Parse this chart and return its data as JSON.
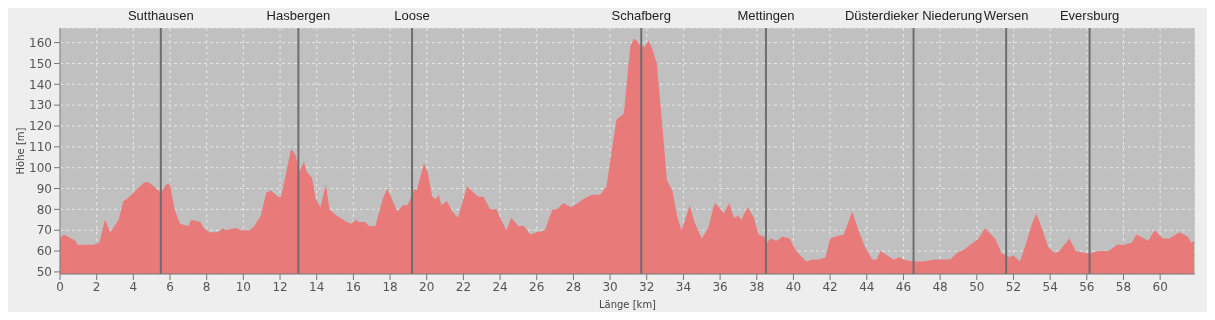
{
  "chart_data": {
    "type": "area",
    "xlabel": "Länge [km]",
    "ylabel": "Höhe [m]",
    "x": [
      0,
      0.2,
      0.85,
      0.95,
      1.8,
      2.15,
      2.45,
      2.75,
      3.2,
      3.45,
      3.65,
      4.6,
      4.85,
      5.25,
      5.5,
      5.8,
      6.0,
      6.25,
      6.55,
      7.0,
      7.15,
      7.65,
      7.85,
      8.15,
      8.6,
      8.9,
      9.05,
      9.45,
      9.65,
      9.85,
      10.35,
      10.6,
      10.95,
      11.25,
      11.5,
      11.9,
      12.05,
      12.25,
      12.6,
      12.7,
      12.85,
      13.05,
      13.3,
      13.45,
      13.75,
      13.95,
      14.2,
      14.5,
      14.7,
      15.1,
      15.65,
      15.9,
      16.1,
      16.3,
      16.65,
      16.85,
      17.2,
      17.6,
      17.85,
      18.1,
      18.4,
      18.7,
      18.95,
      19.15,
      19.35,
      19.45,
      19.85,
      20.05,
      20.3,
      20.5,
      20.65,
      20.8,
      21.1,
      21.4,
      21.7,
      22.2,
      22.8,
      23.1,
      23.45,
      23.8,
      24.0,
      24.35,
      24.6,
      25.0,
      25.3,
      25.65,
      26.0,
      26.45,
      26.85,
      27.1,
      27.45,
      27.9,
      28.55,
      29.0,
      29.45,
      29.8,
      30.1,
      30.35,
      30.75,
      31.1,
      31.3,
      31.45,
      31.6,
      31.9,
      32.1,
      32.3,
      32.55,
      32.85,
      33.1,
      33.4,
      33.65,
      33.9,
      34.35,
      34.6,
      35.0,
      35.35,
      35.7,
      35.95,
      36.2,
      36.5,
      36.75,
      37.0,
      37.15,
      37.5,
      37.85,
      38.1,
      38.4,
      38.55,
      38.75,
      39.1,
      39.4,
      39.8,
      40.15,
      40.7,
      41.05,
      41.4,
      41.75,
      42.0,
      42.3,
      42.75,
      43.2,
      43.55,
      43.9,
      44.3,
      44.55,
      44.75,
      45.1,
      45.45,
      45.8,
      46.0,
      46.55,
      47.1,
      47.65,
      48.55,
      48.9,
      49.35,
      49.65,
      50.1,
      50.45,
      51.0,
      51.35,
      51.8,
      52.0,
      52.35,
      52.7,
      53.0,
      53.25,
      53.5,
      53.9,
      54.25,
      54.5,
      55.05,
      55.4,
      55.95,
      56.2,
      56.65,
      57.2,
      57.65,
      58.0,
      58.45,
      58.7,
      59.35,
      59.7,
      60.15,
      60.5,
      61.05,
      61.5,
      61.7,
      61.85
    ],
    "values": [
      66,
      68,
      65,
      63,
      63,
      64,
      75,
      69,
      75,
      84,
      85,
      93,
      93,
      90,
      88,
      92,
      92,
      80,
      73,
      72,
      75,
      74,
      71,
      69,
      69,
      71,
      70,
      71,
      71,
      70,
      70,
      72,
      77,
      88,
      89,
      86,
      86,
      94,
      109,
      108,
      106,
      98,
      103,
      98,
      95,
      85,
      81,
      92,
      80,
      77,
      74,
      73,
      75,
      74,
      74,
      72,
      72,
      85,
      90,
      85,
      79,
      82,
      82,
      86,
      90,
      89,
      102,
      98,
      86,
      85,
      87,
      82,
      84,
      79,
      76,
      91,
      86,
      86,
      80,
      80,
      76,
      70,
      76,
      72,
      72,
      68,
      69,
      70,
      80,
      80,
      83,
      81,
      85,
      87,
      87,
      91,
      109,
      123,
      126,
      158,
      162,
      161,
      159,
      158,
      161,
      157,
      150,
      120,
      94,
      89,
      77,
      70,
      82,
      74,
      66,
      71,
      83,
      81,
      78,
      83,
      76,
      77,
      75,
      81,
      76,
      68,
      67,
      64,
      66,
      65,
      67,
      66,
      60,
      55,
      56,
      56,
      57,
      66,
      67,
      68,
      79,
      70,
      62,
      56,
      56,
      60,
      58,
      56,
      57,
      56,
      55,
      55,
      56,
      56,
      59,
      61,
      63,
      66,
      71,
      66,
      59,
      57,
      58,
      55,
      64,
      73,
      78,
      72,
      62,
      59,
      60,
      66,
      60,
      59,
      59,
      60,
      60,
      63,
      63,
      64,
      68,
      65,
      70,
      66,
      66,
      69,
      67,
      64,
      65
    ],
    "color": "#e97a7a",
    "xlim": [
      0,
      61.9
    ],
    "ylim": [
      49,
      167
    ],
    "xticks": [
      0,
      2,
      4,
      6,
      8,
      10,
      12,
      14,
      16,
      18,
      20,
      22,
      24,
      26,
      28,
      30,
      32,
      34,
      36,
      38,
      40,
      42,
      44,
      46,
      48,
      50,
      52,
      54,
      56,
      58,
      60
    ],
    "yticks": [
      50,
      60,
      70,
      80,
      90,
      100,
      110,
      120,
      130,
      140,
      150,
      160
    ],
    "grid": true,
    "ref_lines": [
      {
        "axis": "x",
        "value": 5.5,
        "label": "Sutthausen",
        "color": "#6e6e6e"
      },
      {
        "axis": "x",
        "value": 13.0,
        "label": "Hasbergen",
        "color": "#6e6e6e"
      },
      {
        "axis": "x",
        "value": 19.2,
        "label": "Loose",
        "color": "#6e6e6e"
      },
      {
        "axis": "x",
        "value": 31.7,
        "label": "Schafberg",
        "color": "#6e6e6e"
      },
      {
        "axis": "x",
        "value": 38.5,
        "label": "Mettingen",
        "color": "#6e6e6e"
      },
      {
        "axis": "x",
        "value": 46.55,
        "label": "Düsterdieker Niederung",
        "color": "#6e6e6e"
      },
      {
        "axis": "x",
        "value": 51.6,
        "label": "Wersen",
        "color": "#6e6e6e"
      },
      {
        "axis": "x",
        "value": 56.15,
        "label": "Eversburg",
        "color": "#6e6e6e"
      }
    ]
  }
}
